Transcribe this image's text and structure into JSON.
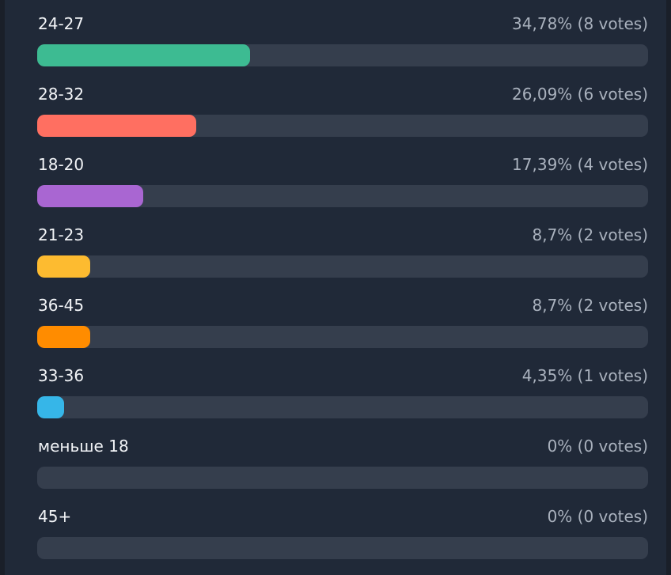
{
  "poll": {
    "options": [
      {
        "label": "24-27",
        "result": "34,78% (8 votes)",
        "percent": 34.78,
        "color": "#3dbb92"
      },
      {
        "label": "28-32",
        "result": "26,09% (6 votes)",
        "percent": 26.09,
        "color": "#ff6f61"
      },
      {
        "label": "18-20",
        "result": "17,39% (4 votes)",
        "percent": 17.39,
        "color": "#a966d2"
      },
      {
        "label": "21-23",
        "result": "8,7% (2 votes)",
        "percent": 8.7,
        "color": "#fdbb30"
      },
      {
        "label": "36-45",
        "result": "8,7% (2 votes)",
        "percent": 8.7,
        "color": "#ff8c00"
      },
      {
        "label": "33-36",
        "result": "4,35% (1 votes)",
        "percent": 4.35,
        "color": "#36b6e8"
      },
      {
        "label": "меньше 18",
        "result": "0% (0 votes)",
        "percent": 0,
        "color": "#353e4d"
      },
      {
        "label": "45+",
        "result": "0% (0 votes)",
        "percent": 0,
        "color": "#353e4d"
      }
    ]
  }
}
